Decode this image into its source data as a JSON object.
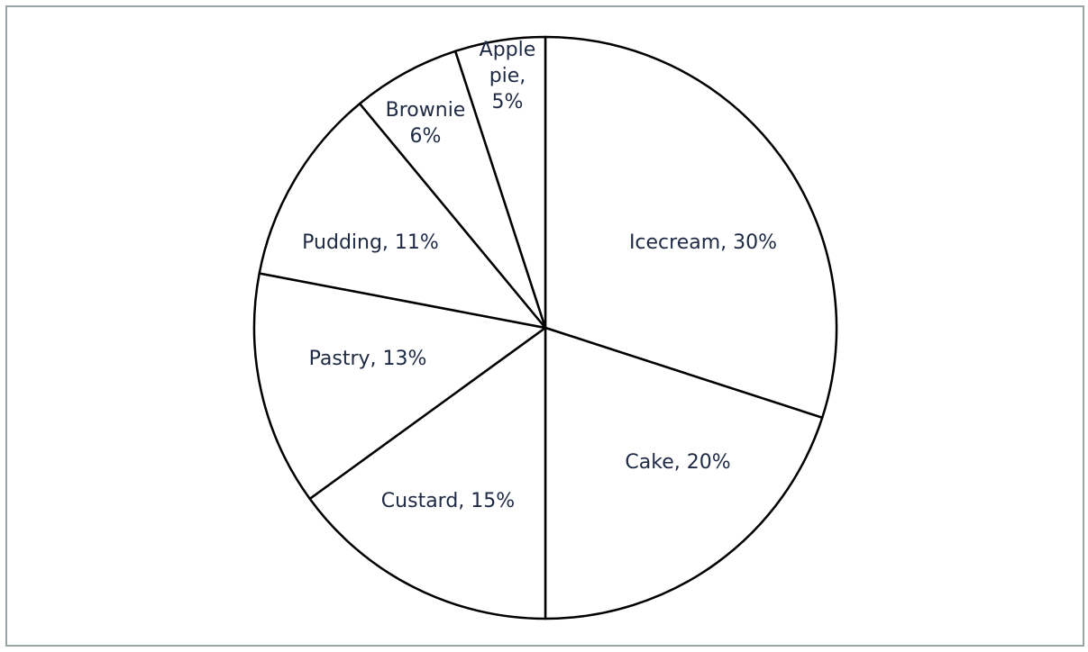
{
  "chart_data": {
    "type": "pie",
    "title": "",
    "slices": [
      {
        "label": "Icecream, 30%",
        "value": 30
      },
      {
        "label": "Cake, 20%",
        "value": 20
      },
      {
        "label": "Custard, 15%",
        "value": 15
      },
      {
        "label": "Pastry, 13%",
        "value": 13
      },
      {
        "label": "Pudding, 11%",
        "value": 11
      },
      {
        "label": "Brownie 6%",
        "value": 6
      },
      {
        "label": "Apple pie, 5%",
        "value": 5
      }
    ],
    "start_angle": "12-o'clock",
    "direction": "clockwise",
    "legend": "none",
    "colors": {
      "fill": "#ffffff",
      "stroke": "#000000",
      "text": "#1e2a44",
      "frame": "#9aa3a6"
    }
  }
}
